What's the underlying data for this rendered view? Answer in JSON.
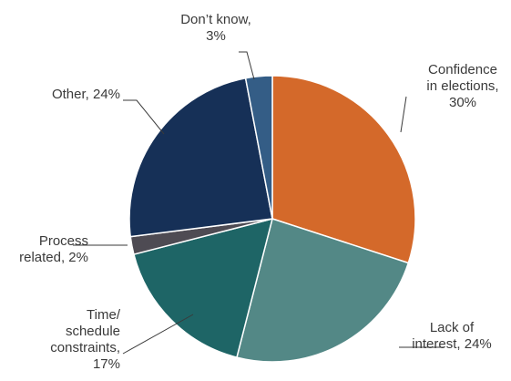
{
  "chart_data": {
    "type": "pie",
    "title": "",
    "slices": [
      {
        "label_lines": [
          "Confidence",
          "in elections,",
          "30%"
        ],
        "category": "Confidence in elections",
        "value": 30,
        "color": "#d4692a"
      },
      {
        "label_lines": [
          "Lack of",
          "interest, 24%"
        ],
        "category": "Lack of interest",
        "value": 24,
        "color": "#538886"
      },
      {
        "label_lines": [
          "Time/",
          "schedule",
          "constraints,",
          "17%"
        ],
        "category": "Time/ schedule constraints",
        "value": 17,
        "color": "#1e6566"
      },
      {
        "label_lines": [
          "Process",
          "related, 2%"
        ],
        "category": "Process related",
        "value": 2,
        "color": "#4e4b53"
      },
      {
        "label_lines": [
          "Other, 24%"
        ],
        "category": "Other",
        "value": 24,
        "color": "#163057"
      },
      {
        "label_lines": [
          "Don’t know,",
          "3%"
        ],
        "category": "Don’t know",
        "value": 3,
        "color": "#345d86"
      }
    ]
  }
}
